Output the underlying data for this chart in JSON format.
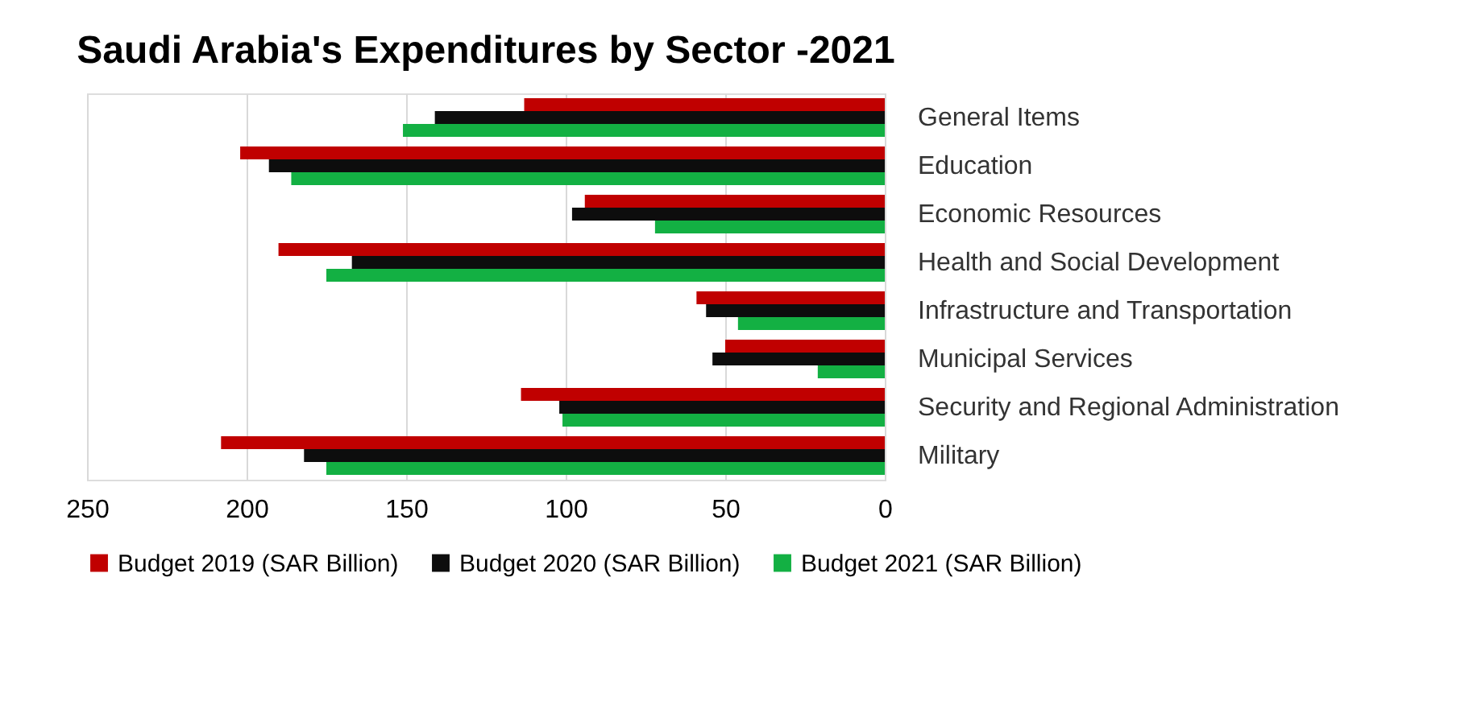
{
  "chart_data": {
    "type": "bar",
    "orientation": "horizontal",
    "title": "Saudi Arabia's Expenditures by Sector -2021",
    "categories": [
      "General Items",
      "Education",
      "Economic Resources",
      "Health and Social Development",
      "Infrastructure and Transportation",
      "Municipal Services",
      "Security and Regional Administration",
      "Military"
    ],
    "series": [
      {
        "name": "Budget 2019 (SAR Billion)",
        "color": "#c00000",
        "values": [
          113,
          202,
          94,
          190,
          59,
          50,
          114,
          208
        ]
      },
      {
        "name": "Budget 2020 (SAR Billion)",
        "color": "#0d0d0d",
        "values": [
          141,
          193,
          98,
          167,
          56,
          54,
          102,
          182
        ]
      },
      {
        "name": "Budget 2021 (SAR Billion)",
        "color": "#13b043",
        "values": [
          151,
          186,
          72,
          175,
          46,
          21,
          101,
          175
        ]
      }
    ],
    "xlim": [
      250,
      0
    ],
    "xticks": [
      250,
      200,
      150,
      100,
      50,
      0
    ],
    "grid": "x",
    "legend": "bottom"
  }
}
